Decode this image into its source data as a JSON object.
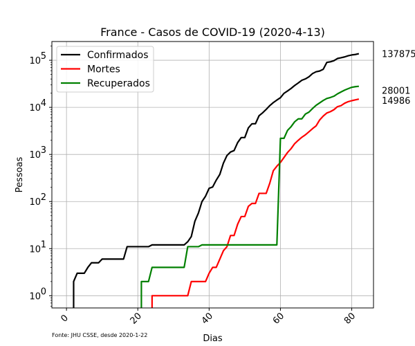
{
  "chart_data": {
    "type": "line",
    "title": "France - Casos de COVID-19 (2020-4-13)",
    "xlabel": "Dias",
    "ylabel": "Pessoas",
    "yscale": "log",
    "xlim": [
      -4.1,
      86.1
    ],
    "ylim": [
      0.55,
      250000
    ],
    "grid": true,
    "legend_position": "top-left",
    "source_note": "Fonte: JHU CSSE, desde 2020-1-22",
    "x_ticks": [
      {
        "value": 0,
        "label": "0"
      },
      {
        "value": 20,
        "label": "20"
      },
      {
        "value": 40,
        "label": "40"
      },
      {
        "value": 60,
        "label": "60"
      },
      {
        "value": 80,
        "label": "80"
      }
    ],
    "y_ticks": [
      {
        "value": 1,
        "base": "10",
        "exp": "0"
      },
      {
        "value": 10,
        "base": "10",
        "exp": "1"
      },
      {
        "value": 100,
        "base": "10",
        "exp": "2"
      },
      {
        "value": 1000,
        "base": "10",
        "exp": "3"
      },
      {
        "value": 10000,
        "base": "10",
        "exp": "4"
      },
      {
        "value": 100000,
        "base": "10",
        "exp": "5"
      }
    ],
    "series": [
      {
        "name": "Confirmados",
        "color": "#000000",
        "final_label": "137875",
        "points": [
          [
            2,
            0.3
          ],
          [
            2,
            2
          ],
          [
            3,
            3
          ],
          [
            4,
            3
          ],
          [
            5,
            3
          ],
          [
            6,
            4
          ],
          [
            7,
            5
          ],
          [
            8,
            5
          ],
          [
            9,
            5
          ],
          [
            10,
            6
          ],
          [
            11,
            6
          ],
          [
            12,
            6
          ],
          [
            13,
            6
          ],
          [
            14,
            6
          ],
          [
            15,
            6
          ],
          [
            16,
            6
          ],
          [
            17,
            11
          ],
          [
            18,
            11
          ],
          [
            19,
            11
          ],
          [
            20,
            11
          ],
          [
            21,
            11
          ],
          [
            22,
            11
          ],
          [
            23,
            11
          ],
          [
            24,
            12
          ],
          [
            25,
            12
          ],
          [
            26,
            12
          ],
          [
            27,
            12
          ],
          [
            28,
            12
          ],
          [
            29,
            12
          ],
          [
            30,
            12
          ],
          [
            31,
            12
          ],
          [
            32,
            12
          ],
          [
            33,
            12
          ],
          [
            34,
            14
          ],
          [
            35,
            18
          ],
          [
            36,
            38
          ],
          [
            37,
            57
          ],
          [
            38,
            100
          ],
          [
            39,
            130
          ],
          [
            40,
            191
          ],
          [
            41,
            204
          ],
          [
            42,
            285
          ],
          [
            43,
            377
          ],
          [
            44,
            653
          ],
          [
            45,
            949
          ],
          [
            46,
            1126
          ],
          [
            47,
            1209
          ],
          [
            48,
            1784
          ],
          [
            49,
            2281
          ],
          [
            50,
            2281
          ],
          [
            51,
            3661
          ],
          [
            52,
            4469
          ],
          [
            53,
            4499
          ],
          [
            54,
            6633
          ],
          [
            55,
            7652
          ],
          [
            56,
            9043
          ],
          [
            57,
            10871
          ],
          [
            58,
            12612
          ],
          [
            59,
            14282
          ],
          [
            60,
            16018
          ],
          [
            61,
            19856
          ],
          [
            62,
            22304
          ],
          [
            63,
            25233
          ],
          [
            64,
            29155
          ],
          [
            65,
            32964
          ],
          [
            66,
            37575
          ],
          [
            67,
            40174
          ],
          [
            68,
            44550
          ],
          [
            69,
            52128
          ],
          [
            70,
            56989
          ],
          [
            71,
            59105
          ],
          [
            72,
            64338
          ],
          [
            73,
            89953
          ],
          [
            74,
            92839
          ],
          [
            75,
            98010
          ],
          [
            76,
            109069
          ],
          [
            77,
            112950
          ],
          [
            78,
            117749
          ],
          [
            79,
            124869
          ],
          [
            80,
            129654
          ],
          [
            81,
            132591
          ],
          [
            82,
            137875
          ]
        ]
      },
      {
        "name": "Mortes",
        "color": "#ff0000",
        "final_label": "14986",
        "points": [
          [
            24,
            0.3
          ],
          [
            24,
            1
          ],
          [
            25,
            1
          ],
          [
            26,
            1
          ],
          [
            27,
            1
          ],
          [
            28,
            1
          ],
          [
            29,
            1
          ],
          [
            30,
            1
          ],
          [
            31,
            1
          ],
          [
            32,
            1
          ],
          [
            33,
            1
          ],
          [
            34,
            1
          ],
          [
            35,
            2
          ],
          [
            36,
            2
          ],
          [
            37,
            2
          ],
          [
            38,
            2
          ],
          [
            39,
            2
          ],
          [
            40,
            3
          ],
          [
            41,
            4
          ],
          [
            42,
            4
          ],
          [
            43,
            6
          ],
          [
            44,
            9
          ],
          [
            45,
            11
          ],
          [
            46,
            19
          ],
          [
            47,
            19
          ],
          [
            48,
            33
          ],
          [
            49,
            48
          ],
          [
            50,
            48
          ],
          [
            51,
            79
          ],
          [
            52,
            91
          ],
          [
            53,
            91
          ],
          [
            54,
            149
          ],
          [
            55,
            149
          ],
          [
            56,
            149
          ],
          [
            57,
            244
          ],
          [
            58,
            451
          ],
          [
            59,
            563
          ],
          [
            60,
            676
          ],
          [
            61,
            862
          ],
          [
            62,
            1102
          ],
          [
            63,
            1333
          ],
          [
            64,
            1698
          ],
          [
            65,
            1997
          ],
          [
            66,
            2317
          ],
          [
            67,
            2611
          ],
          [
            68,
            3030
          ],
          [
            69,
            3532
          ],
          [
            70,
            4043
          ],
          [
            71,
            5398
          ],
          [
            72,
            6520
          ],
          [
            73,
            7574
          ],
          [
            74,
            8093
          ],
          [
            75,
            8926
          ],
          [
            76,
            10343
          ],
          [
            77,
            10887
          ],
          [
            78,
            12228
          ],
          [
            79,
            13215
          ],
          [
            80,
            13851
          ],
          [
            81,
            14412
          ],
          [
            82,
            14986
          ]
        ]
      },
      {
        "name": "Recuperados",
        "color": "#008000",
        "final_label": "28001",
        "points": [
          [
            21,
            0.3
          ],
          [
            21,
            2
          ],
          [
            22,
            2
          ],
          [
            23,
            2
          ],
          [
            24,
            4
          ],
          [
            25,
            4
          ],
          [
            26,
            4
          ],
          [
            27,
            4
          ],
          [
            28,
            4
          ],
          [
            29,
            4
          ],
          [
            30,
            4
          ],
          [
            31,
            4
          ],
          [
            32,
            4
          ],
          [
            33,
            4
          ],
          [
            34,
            11
          ],
          [
            35,
            11
          ],
          [
            36,
            11
          ],
          [
            37,
            11
          ],
          [
            38,
            12
          ],
          [
            39,
            12
          ],
          [
            40,
            12
          ],
          [
            41,
            12
          ],
          [
            42,
            12
          ],
          [
            43,
            12
          ],
          [
            44,
            12
          ],
          [
            45,
            12
          ],
          [
            46,
            12
          ],
          [
            47,
            12
          ],
          [
            48,
            12
          ],
          [
            49,
            12
          ],
          [
            50,
            12
          ],
          [
            51,
            12
          ],
          [
            52,
            12
          ],
          [
            53,
            12
          ],
          [
            54,
            12
          ],
          [
            55,
            12
          ],
          [
            56,
            12
          ],
          [
            57,
            12
          ],
          [
            58,
            12
          ],
          [
            59,
            12
          ],
          [
            60,
            2200
          ],
          [
            61,
            2200
          ],
          [
            62,
            3250
          ],
          [
            63,
            3900
          ],
          [
            64,
            4948
          ],
          [
            65,
            5700
          ],
          [
            66,
            5700
          ],
          [
            67,
            7202
          ],
          [
            68,
            7927
          ],
          [
            69,
            9444
          ],
          [
            70,
            11053
          ],
          [
            71,
            12428
          ],
          [
            72,
            14008
          ],
          [
            73,
            15438
          ],
          [
            74,
            16183
          ],
          [
            75,
            17250
          ],
          [
            76,
            19337
          ],
          [
            77,
            21254
          ],
          [
            78,
            23206
          ],
          [
            79,
            24932
          ],
          [
            80,
            26663
          ],
          [
            81,
            27469
          ],
          [
            82,
            28001
          ]
        ]
      }
    ]
  }
}
